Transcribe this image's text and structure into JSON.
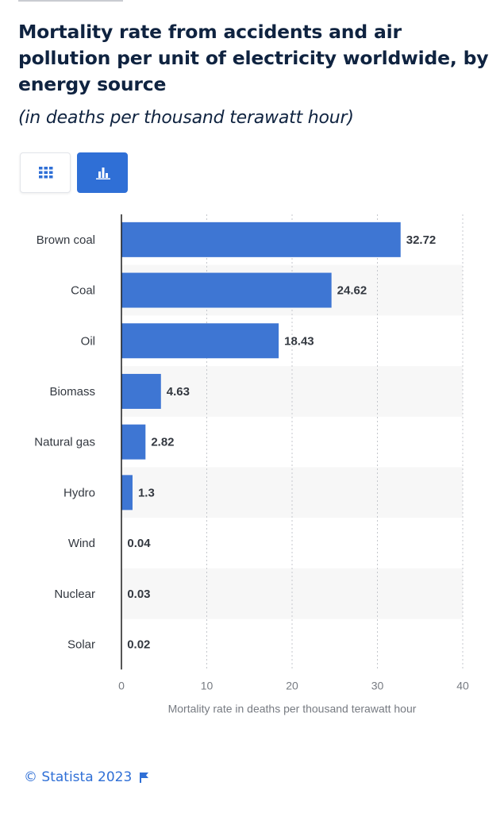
{
  "header": {
    "title": "Mortality rate from accidents and air pollution per unit of electricity worldwide, by energy source",
    "subtitle": "(in deaths per thousand terawatt hour)"
  },
  "view_toggle": {
    "table_icon": "grid-icon",
    "chart_icon": "bar-chart-icon",
    "active": "chart"
  },
  "colors": {
    "bar": "#3e76d3",
    "accent": "#2f6fd6",
    "title": "#0f2340",
    "band": "#f7f7f7"
  },
  "chart_data": {
    "type": "bar",
    "orientation": "horizontal",
    "categories": [
      "Brown coal",
      "Coal",
      "Oil",
      "Biomass",
      "Natural gas",
      "Hydro",
      "Wind",
      "Nuclear",
      "Solar"
    ],
    "values": [
      32.72,
      24.62,
      18.43,
      4.63,
      2.82,
      1.3,
      0.04,
      0.03,
      0.02
    ],
    "value_labels": [
      "32.72",
      "24.62",
      "18.43",
      "4.63",
      "2.82",
      "1.3",
      "0.04",
      "0.03",
      "0.02"
    ],
    "xlabel": "Mortality rate in deaths per thousand terawatt hour",
    "xlim": [
      0,
      40
    ],
    "xticks": [
      0,
      10,
      20,
      30,
      40
    ],
    "grid": true
  },
  "footer": {
    "credit": "© Statista 2023",
    "flag_icon": "flag-icon"
  }
}
